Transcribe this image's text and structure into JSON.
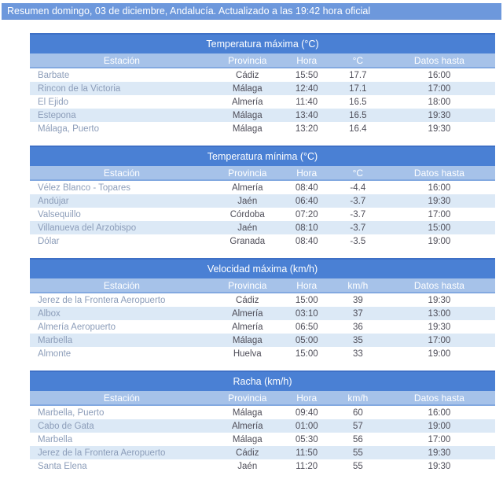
{
  "page": {
    "header_text": "Resumen domingo, 03 de diciembre, Andalucía. Actualizado a las 19:42 hora oficial"
  },
  "colors": {
    "header_bar": "#6d98dc",
    "table_title_bar": "#4a80d4",
    "table_title_border": "#3e70c6",
    "column_header": "#a6c2e9",
    "column_header_border": "#83a9e0",
    "row_alternate": "#dce9f6",
    "station_link_text": "#8c9db9",
    "cell_text": "#4f4e59",
    "header_text": "#ffffff"
  },
  "tables": [
    {
      "title": "Temperatura máxima (°C)",
      "columns": [
        "Estación",
        "Provincia",
        "Hora",
        "°C",
        "Datos hasta"
      ],
      "rows": [
        [
          "Barbate",
          "Cádiz",
          "15:50",
          "17.7",
          "16:00"
        ],
        [
          "Rincon de la Victoria",
          "Málaga",
          "12:40",
          "17.1",
          "17:00"
        ],
        [
          "El Ejido",
          "Almería",
          "11:40",
          "16.5",
          "18:00"
        ],
        [
          "Estepona",
          "Málaga",
          "13:40",
          "16.5",
          "19:30"
        ],
        [
          "Málaga, Puerto",
          "Málaga",
          "13:20",
          "16.4",
          "19:30"
        ]
      ]
    },
    {
      "title": "Temperatura mínima (°C)",
      "columns": [
        "Estación",
        "Provincia",
        "Hora",
        "°C",
        "Datos hasta"
      ],
      "rows": [
        [
          "Vélez Blanco - Topares",
          "Almería",
          "08:40",
          "-4.4",
          "16:00"
        ],
        [
          "Andújar",
          "Jaén",
          "06:40",
          "-3.7",
          "19:30"
        ],
        [
          "Valsequillo",
          "Córdoba",
          "07:20",
          "-3.7",
          "17:00"
        ],
        [
          "Villanueva del Arzobispo",
          "Jaén",
          "08:10",
          "-3.7",
          "15:00"
        ],
        [
          "Dólar",
          "Granada",
          "08:40",
          "-3.5",
          "19:00"
        ]
      ]
    },
    {
      "title": "Velocidad máxima (km/h)",
      "columns": [
        "Estación",
        "Provincia",
        "Hora",
        "km/h",
        "Datos hasta"
      ],
      "rows": [
        [
          "Jerez de la Frontera Aeropuerto",
          "Cádiz",
          "15:00",
          "39",
          "19:30"
        ],
        [
          "Albox",
          "Almería",
          "03:10",
          "37",
          "13:00"
        ],
        [
          "Almería Aeropuerto",
          "Almería",
          "06:50",
          "36",
          "19:30"
        ],
        [
          "Marbella",
          "Málaga",
          "05:00",
          "35",
          "17:00"
        ],
        [
          "Almonte",
          "Huelva",
          "15:00",
          "33",
          "19:00"
        ]
      ]
    },
    {
      "title": "Racha (km/h)",
      "columns": [
        "Estación",
        "Provincia",
        "Hora",
        "km/h",
        "Datos hasta"
      ],
      "rows": [
        [
          "Marbella, Puerto",
          "Málaga",
          "09:40",
          "60",
          "16:00"
        ],
        [
          "Cabo de Gata",
          "Almería",
          "01:00",
          "57",
          "19:00"
        ],
        [
          "Marbella",
          "Málaga",
          "05:30",
          "56",
          "17:00"
        ],
        [
          "Jerez de la Frontera Aeropuerto",
          "Cádiz",
          "11:50",
          "55",
          "19:30"
        ],
        [
          "Santa Elena",
          "Jaén",
          "11:20",
          "55",
          "19:30"
        ]
      ]
    }
  ]
}
